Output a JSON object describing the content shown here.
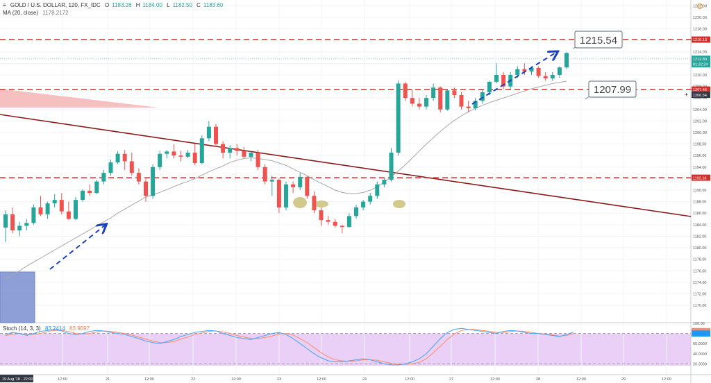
{
  "header": {
    "title": "GOLD / U.S. DOLLAR, 120, FX_IDC",
    "o_label": "O",
    "o_value": "1183.26",
    "h_label": "H",
    "h_value": "1184.00",
    "l_label": "L",
    "l_value": "1182.50",
    "c_label": "C",
    "c_value": "1183.60",
    "ma_label": "MA (20, close)",
    "ma_value": "1178.2172"
  },
  "stoch_header": {
    "label": "Stoch (14, 3, 3)",
    "k_value": "83.2414",
    "d_value": "83.9097"
  },
  "colors": {
    "up": "#26a69a",
    "down": "#ef5350",
    "hline": "#d32f2f",
    "trend": "#8b1a1a",
    "ma": "#a8a8a8",
    "arrow": "#1a3fbf",
    "stoch_bg": "#e6c8f5",
    "stoch_k": "#42a5f5",
    "stoch_d": "#ff8a65",
    "rect_blue": "#7a8fd0",
    "wedge_red": "#f5b5b5",
    "ellipse": "#c9c07a"
  },
  "chart_data": {
    "type": "candlestick",
    "title": "GOLD / U.S. DOLLAR, 120, FX_IDC",
    "ylim": [
      1167,
      1223
    ],
    "y_ticks": [
      "1222.00",
      "1220.00",
      "1218.00",
      "1216.00",
      "1214.00",
      "1212.00",
      "1210.00",
      "1208.00",
      "1206.00",
      "1204.00",
      "1202.00",
      "1200.00",
      "1198.00",
      "1196.00",
      "1194.00",
      "1192.00",
      "1190.00",
      "1188.00",
      "1186.00",
      "1184.00",
      "1182.00",
      "1180.00",
      "1178.00",
      "1176.00",
      "1174.00",
      "1172.00",
      "1170.00"
    ],
    "x_ticks": [
      "19 Aug '18 - 22:00",
      "12:00",
      "21",
      "12:00",
      "22",
      "12:00",
      "23",
      "12:00",
      "24",
      "12:00",
      "27",
      "12:00",
      "28",
      "12:00",
      "29",
      "12:00"
    ],
    "candles": [
      {
        "o": 1183.5,
        "h": 1186.5,
        "l": 1181.0,
        "c": 1185.8
      },
      {
        "o": 1185.8,
        "h": 1187.0,
        "l": 1182.5,
        "c": 1183.0
      },
      {
        "o": 1183.0,
        "h": 1184.5,
        "l": 1182.0,
        "c": 1183.8
      },
      {
        "o": 1183.8,
        "h": 1185.0,
        "l": 1183.0,
        "c": 1184.3
      },
      {
        "o": 1184.3,
        "h": 1187.5,
        "l": 1184.0,
        "c": 1187.0
      },
      {
        "o": 1187.0,
        "h": 1189.0,
        "l": 1185.5,
        "c": 1185.8
      },
      {
        "o": 1185.8,
        "h": 1188.0,
        "l": 1185.0,
        "c": 1187.7
      },
      {
        "o": 1187.7,
        "h": 1189.3,
        "l": 1187.0,
        "c": 1188.3
      },
      {
        "o": 1188.3,
        "h": 1189.5,
        "l": 1185.8,
        "c": 1186.3
      },
      {
        "o": 1186.3,
        "h": 1188.0,
        "l": 1184.8,
        "c": 1185.0
      },
      {
        "o": 1185.0,
        "h": 1188.8,
        "l": 1184.8,
        "c": 1188.3
      },
      {
        "o": 1188.3,
        "h": 1190.2,
        "l": 1188.0,
        "c": 1189.9
      },
      {
        "o": 1189.9,
        "h": 1191.0,
        "l": 1189.0,
        "c": 1189.5
      },
      {
        "o": 1189.5,
        "h": 1191.8,
        "l": 1189.3,
        "c": 1191.5
      },
      {
        "o": 1191.5,
        "h": 1193.5,
        "l": 1191.0,
        "c": 1193.0
      },
      {
        "o": 1193.0,
        "h": 1195.3,
        "l": 1192.5,
        "c": 1194.8
      },
      {
        "o": 1194.8,
        "h": 1196.8,
        "l": 1194.5,
        "c": 1196.3
      },
      {
        "o": 1196.3,
        "h": 1197.0,
        "l": 1193.5,
        "c": 1195.0
      },
      {
        "o": 1195.0,
        "h": 1196.5,
        "l": 1192.5,
        "c": 1193.0
      },
      {
        "o": 1193.0,
        "h": 1193.8,
        "l": 1191.0,
        "c": 1191.5
      },
      {
        "o": 1191.5,
        "h": 1192.0,
        "l": 1188.0,
        "c": 1189.0
      },
      {
        "o": 1189.0,
        "h": 1194.5,
        "l": 1188.5,
        "c": 1194.0
      },
      {
        "o": 1194.0,
        "h": 1196.8,
        "l": 1193.5,
        "c": 1196.3
      },
      {
        "o": 1196.3,
        "h": 1197.0,
        "l": 1195.5,
        "c": 1196.7
      },
      {
        "o": 1196.7,
        "h": 1198.0,
        "l": 1195.5,
        "c": 1196.0
      },
      {
        "o": 1196.0,
        "h": 1196.8,
        "l": 1195.0,
        "c": 1195.8
      },
      {
        "o": 1195.8,
        "h": 1197.0,
        "l": 1195.5,
        "c": 1196.5
      },
      {
        "o": 1196.5,
        "h": 1198.0,
        "l": 1194.3,
        "c": 1194.7
      },
      {
        "o": 1194.7,
        "h": 1199.5,
        "l": 1194.5,
        "c": 1199.0
      },
      {
        "o": 1199.0,
        "h": 1202.0,
        "l": 1198.5,
        "c": 1201.0
      },
      {
        "o": 1201.0,
        "h": 1201.5,
        "l": 1197.5,
        "c": 1198.0
      },
      {
        "o": 1198.0,
        "h": 1198.5,
        "l": 1195.5,
        "c": 1196.5
      },
      {
        "o": 1196.5,
        "h": 1197.8,
        "l": 1195.5,
        "c": 1197.3
      },
      {
        "o": 1197.3,
        "h": 1198.0,
        "l": 1196.0,
        "c": 1196.8
      },
      {
        "o": 1196.8,
        "h": 1197.5,
        "l": 1195.5,
        "c": 1195.8
      },
      {
        "o": 1195.8,
        "h": 1196.8,
        "l": 1195.0,
        "c": 1196.5
      },
      {
        "o": 1196.5,
        "h": 1197.0,
        "l": 1193.5,
        "c": 1194.0
      },
      {
        "o": 1194.0,
        "h": 1194.5,
        "l": 1191.0,
        "c": 1191.5
      },
      {
        "o": 1191.5,
        "h": 1192.5,
        "l": 1189.0,
        "c": 1191.8
      },
      {
        "o": 1191.8,
        "h": 1192.0,
        "l": 1186.0,
        "c": 1187.0
      },
      {
        "o": 1187.0,
        "h": 1191.5,
        "l": 1186.5,
        "c": 1191.0
      },
      {
        "o": 1191.0,
        "h": 1191.5,
        "l": 1189.5,
        "c": 1190.5
      },
      {
        "o": 1190.5,
        "h": 1193.0,
        "l": 1190.0,
        "c": 1192.3
      },
      {
        "o": 1192.3,
        "h": 1192.5,
        "l": 1188.5,
        "c": 1189.0
      },
      {
        "o": 1189.0,
        "h": 1189.8,
        "l": 1186.0,
        "c": 1186.5
      },
      {
        "o": 1186.5,
        "h": 1187.0,
        "l": 1183.8,
        "c": 1184.8
      },
      {
        "o": 1184.8,
        "h": 1185.5,
        "l": 1184.0,
        "c": 1184.5
      },
      {
        "o": 1184.5,
        "h": 1185.0,
        "l": 1183.5,
        "c": 1183.8
      },
      {
        "o": 1183.8,
        "h": 1184.0,
        "l": 1182.5,
        "c": 1183.6
      },
      {
        "o": 1183.6,
        "h": 1186.0,
        "l": 1183.5,
        "c": 1185.5
      },
      {
        "o": 1185.5,
        "h": 1187.5,
        "l": 1185.0,
        "c": 1187.0
      },
      {
        "o": 1187.0,
        "h": 1188.3,
        "l": 1186.5,
        "c": 1188.0
      },
      {
        "o": 1188.0,
        "h": 1189.5,
        "l": 1187.5,
        "c": 1189.0
      },
      {
        "o": 1189.0,
        "h": 1191.5,
        "l": 1188.5,
        "c": 1191.0
      },
      {
        "o": 1191.0,
        "h": 1192.2,
        "l": 1190.5,
        "c": 1191.8
      },
      {
        "o": 1191.8,
        "h": 1197.3,
        "l": 1191.5,
        "c": 1196.5
      },
      {
        "o": 1196.5,
        "h": 1209.0,
        "l": 1196.0,
        "c": 1208.5
      },
      {
        "o": 1208.5,
        "h": 1208.8,
        "l": 1205.5,
        "c": 1206.0
      },
      {
        "o": 1206.0,
        "h": 1207.5,
        "l": 1204.5,
        "c": 1205.0
      },
      {
        "o": 1205.0,
        "h": 1206.0,
        "l": 1204.0,
        "c": 1204.5
      },
      {
        "o": 1204.5,
        "h": 1206.5,
        "l": 1204.0,
        "c": 1206.0
      },
      {
        "o": 1206.0,
        "h": 1208.5,
        "l": 1205.5,
        "c": 1207.8
      },
      {
        "o": 1207.8,
        "h": 1208.0,
        "l": 1203.5,
        "c": 1204.0
      },
      {
        "o": 1204.0,
        "h": 1207.5,
        "l": 1203.8,
        "c": 1207.3
      },
      {
        "o": 1207.3,
        "h": 1207.8,
        "l": 1206.0,
        "c": 1206.5
      },
      {
        "o": 1206.5,
        "h": 1207.0,
        "l": 1204.0,
        "c": 1204.5
      },
      {
        "o": 1204.5,
        "h": 1205.5,
        "l": 1203.5,
        "c": 1204.2
      },
      {
        "o": 1204.2,
        "h": 1206.0,
        "l": 1203.8,
        "c": 1205.5
      },
      {
        "o": 1205.5,
        "h": 1207.5,
        "l": 1205.0,
        "c": 1207.0
      },
      {
        "o": 1207.0,
        "h": 1209.0,
        "l": 1206.5,
        "c": 1208.8
      },
      {
        "o": 1208.8,
        "h": 1212.0,
        "l": 1208.5,
        "c": 1210.0
      },
      {
        "o": 1210.0,
        "h": 1210.5,
        "l": 1207.5,
        "c": 1208.0
      },
      {
        "o": 1208.0,
        "h": 1210.5,
        "l": 1207.5,
        "c": 1210.0
      },
      {
        "o": 1210.0,
        "h": 1211.5,
        "l": 1209.5,
        "c": 1211.0
      },
      {
        "o": 1211.0,
        "h": 1212.0,
        "l": 1210.0,
        "c": 1210.6
      },
      {
        "o": 1210.6,
        "h": 1211.5,
        "l": 1210.0,
        "c": 1211.2
      },
      {
        "o": 1211.2,
        "h": 1211.5,
        "l": 1209.5,
        "c": 1209.8
      },
      {
        "o": 1209.8,
        "h": 1210.5,
        "l": 1209.0,
        "c": 1209.4
      },
      {
        "o": 1209.4,
        "h": 1210.5,
        "l": 1209.0,
        "c": 1210.0
      },
      {
        "o": 1210.0,
        "h": 1211.5,
        "l": 1209.5,
        "c": 1211.3
      },
      {
        "o": 1211.3,
        "h": 1214.0,
        "l": 1211.0,
        "c": 1213.8
      }
    ],
    "ma": [
      1174.6,
      1175.3,
      1176.0,
      1176.8,
      1177.5,
      1178.2,
      1178.9,
      1179.6,
      1180.3,
      1181.0,
      1181.7,
      1182.4,
      1183.1,
      1183.8,
      1184.5,
      1185.2,
      1186.0,
      1186.7,
      1187.4,
      1188.1,
      1188.8,
      1189.2,
      1189.6,
      1190.1,
      1190.6,
      1191.1,
      1191.5,
      1192.0,
      1192.6,
      1193.2,
      1193.7,
      1194.2,
      1194.8,
      1195.2,
      1195.5,
      1195.6,
      1195.5,
      1195.3,
      1195.1,
      1194.7,
      1194.3,
      1193.7,
      1193.1,
      1192.5,
      1191.8,
      1191.2,
      1190.6,
      1190.0,
      1189.6,
      1189.4,
      1189.4,
      1189.6,
      1190.0,
      1190.6,
      1191.4,
      1192.3,
      1193.3,
      1194.4,
      1195.6,
      1196.8,
      1198.0,
      1199.1,
      1200.2,
      1201.2,
      1202.1,
      1202.9,
      1203.6,
      1204.2,
      1204.7,
      1205.2,
      1205.6,
      1206.0,
      1206.4,
      1206.8,
      1207.2,
      1207.6,
      1207.9,
      1208.2,
      1208.5,
      1208.7,
      1208.9
    ],
    "horizontal_levels": [
      {
        "price": 1216.13,
        "label": "1216.13"
      },
      {
        "price": 1207.46,
        "label": "1207.46"
      },
      {
        "price": 1192.16,
        "label": "1192.16"
      }
    ],
    "price_tags": [
      {
        "price": 1212.8,
        "label": "1212.80",
        "sub": "01:32:24"
      },
      {
        "price": 1206.54,
        "label": "1206.54"
      }
    ],
    "annotations": [
      {
        "text": "1215.54",
        "price": 1215.54
      },
      {
        "text": "1207.99",
        "price": 1207.99
      }
    ],
    "stoch": {
      "y_ticks": [
        "100.00",
        "80.0000",
        "60.0000",
        "40.0000",
        "20.0000"
      ],
      "k_value": 83.2414,
      "d_value": 83.9097,
      "k": [
        78,
        82,
        80,
        76,
        80,
        84,
        86,
        88,
        85,
        80,
        78,
        80,
        84,
        86,
        85,
        82,
        80,
        78,
        74,
        70,
        65,
        62,
        60,
        64,
        68,
        74,
        78,
        82,
        84,
        86,
        85,
        80,
        76,
        72,
        70,
        68,
        72,
        76,
        80,
        82,
        78,
        70,
        60,
        50,
        40,
        32,
        26,
        24,
        24,
        26,
        28,
        30,
        28,
        24,
        20,
        18,
        18,
        20,
        24,
        30,
        40,
        55,
        70,
        82,
        88,
        90,
        88,
        86,
        84,
        82,
        80,
        84,
        86,
        85,
        82,
        80,
        80,
        78,
        76,
        74,
        78,
        83
      ],
      "d": [
        76,
        78,
        80,
        78,
        78,
        80,
        84,
        86,
        86,
        84,
        80,
        79,
        80,
        83,
        85,
        84,
        82,
        80,
        77,
        73,
        69,
        65,
        62,
        62,
        64,
        69,
        73,
        78,
        81,
        84,
        85,
        83,
        80,
        76,
        73,
        70,
        70,
        72,
        75,
        79,
        80,
        77,
        70,
        62,
        52,
        42,
        34,
        28,
        26,
        25,
        26,
        28,
        28,
        27,
        24,
        21,
        19,
        19,
        20,
        23,
        30,
        42,
        55,
        68,
        79,
        86,
        88,
        88,
        86,
        84,
        82,
        82,
        84,
        85,
        84,
        82,
        80,
        79,
        77,
        75,
        76,
        80
      ]
    }
  }
}
